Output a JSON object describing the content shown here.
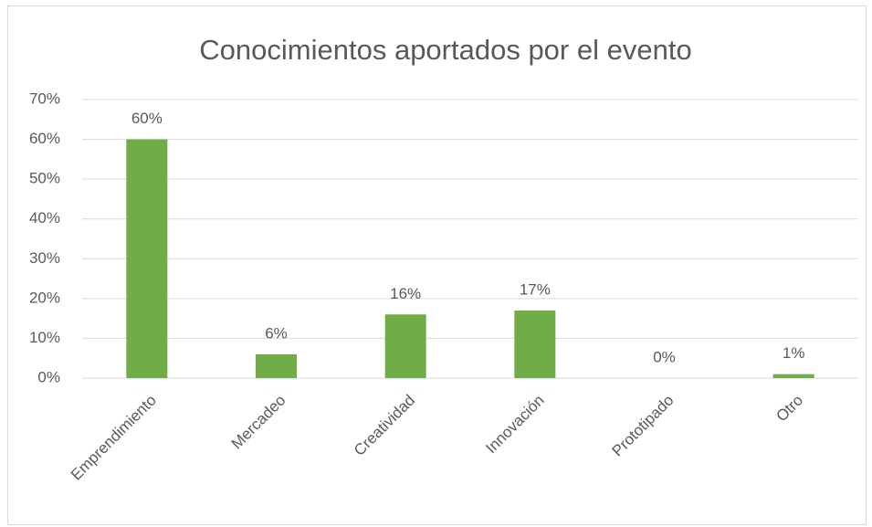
{
  "chart_data": {
    "type": "bar",
    "title": "Conocimientos aportados por el evento",
    "categories": [
      "Emprendimiento",
      "Mercadeo",
      "Creatividad",
      "Innovación",
      "Prototipado",
      "Otro"
    ],
    "values": [
      60,
      6,
      16,
      17,
      0,
      1
    ],
    "value_labels": [
      "60%",
      "6%",
      "16%",
      "17%",
      "0%",
      "1%"
    ],
    "color": "#70ad47",
    "ylim": [
      0,
      70
    ],
    "yticks": [
      {
        "value": 0,
        "label": "0%"
      },
      {
        "value": 10,
        "label": "10%"
      },
      {
        "value": 20,
        "label": "20%"
      },
      {
        "value": 30,
        "label": "30%"
      },
      {
        "value": 40,
        "label": "40%"
      },
      {
        "value": 50,
        "label": "50%"
      },
      {
        "value": 60,
        "label": "60%"
      },
      {
        "value": 70,
        "label": "70%"
      }
    ],
    "grid": true
  }
}
